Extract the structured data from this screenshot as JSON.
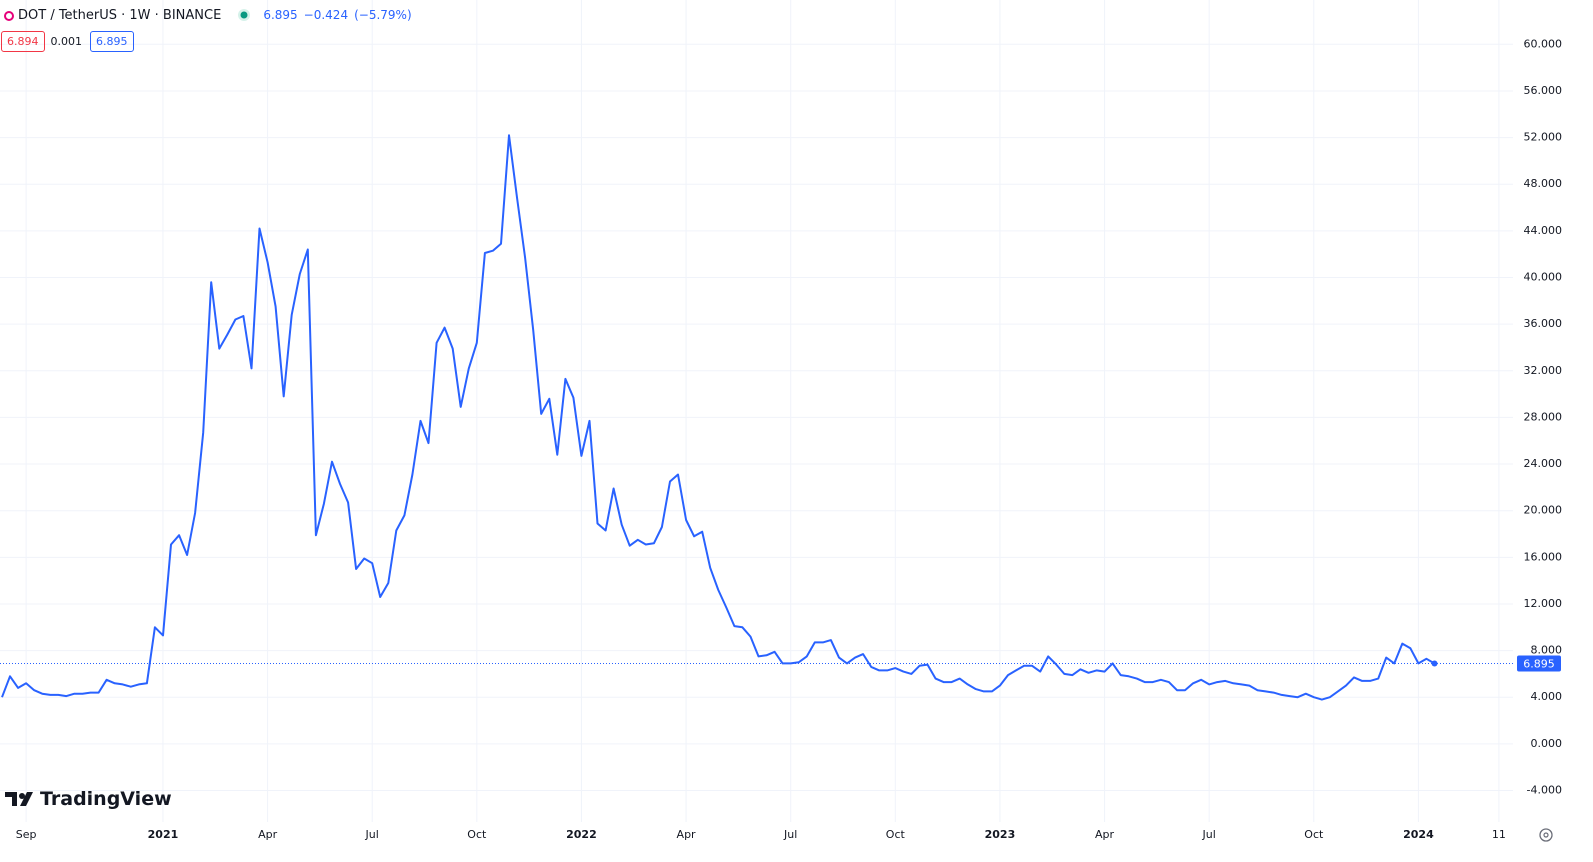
{
  "header": {
    "symbol": "DOT / TetherUS · 1W · BINANCE",
    "last": "6.895",
    "change": "−0.424",
    "change_pct": "(−5.79%)",
    "quote": {
      "bid": "6.894",
      "spread": "0.001",
      "ask": "6.895"
    }
  },
  "branding": "TradingView",
  "chart_data": {
    "type": "line",
    "color": "#2962ff",
    "grid": true,
    "ylim": [
      -6.7,
      63.8
    ],
    "yticks": [
      {
        "value": -4,
        "label": "-4.000"
      },
      {
        "value": 0,
        "label": "0.000"
      },
      {
        "value": 4,
        "label": "4.000"
      },
      {
        "value": 8,
        "label": "8.000"
      },
      {
        "value": 12,
        "label": "12.000"
      },
      {
        "value": 16,
        "label": "16.000"
      },
      {
        "value": 20,
        "label": "20.000"
      },
      {
        "value": 24,
        "label": "24.000"
      },
      {
        "value": 28,
        "label": "28.000"
      },
      {
        "value": 32,
        "label": "32.000"
      },
      {
        "value": 36,
        "label": "36.000"
      },
      {
        "value": 40,
        "label": "40.000"
      },
      {
        "value": 44,
        "label": "44.000"
      },
      {
        "value": 48,
        "label": "48.000"
      },
      {
        "value": 52,
        "label": "52.000"
      },
      {
        "value": 56,
        "label": "56.000"
      },
      {
        "value": 60,
        "label": "60.000"
      }
    ],
    "categories": [
      null,
      null,
      null,
      "Sep",
      null,
      null,
      null,
      null,
      null,
      null,
      null,
      null,
      null,
      null,
      null,
      null,
      null,
      null,
      null,
      null,
      "2021",
      null,
      null,
      null,
      null,
      null,
      null,
      null,
      null,
      null,
      null,
      null,
      null,
      "Apr",
      null,
      null,
      null,
      null,
      null,
      null,
      null,
      null,
      null,
      null,
      null,
      null,
      "Jul",
      null,
      null,
      null,
      null,
      null,
      null,
      null,
      null,
      null,
      null,
      null,
      null,
      "Oct",
      null,
      null,
      null,
      null,
      null,
      null,
      null,
      null,
      null,
      null,
      null,
      null,
      "2022",
      null,
      null,
      null,
      null,
      null,
      null,
      null,
      null,
      null,
      null,
      null,
      null,
      "Apr",
      null,
      null,
      null,
      null,
      null,
      null,
      null,
      null,
      null,
      null,
      null,
      null,
      "Jul",
      null,
      null,
      null,
      null,
      null,
      null,
      null,
      null,
      null,
      null,
      null,
      null,
      "Oct",
      null,
      null,
      null,
      null,
      null,
      null,
      null,
      null,
      null,
      null,
      null,
      null,
      "2023",
      null,
      null,
      null,
      null,
      null,
      null,
      null,
      null,
      null,
      null,
      null,
      null,
      "Apr",
      null,
      null,
      null,
      null,
      null,
      null,
      null,
      null,
      null,
      null,
      null,
      null,
      "Jul",
      null,
      null,
      null,
      null,
      null,
      null,
      null,
      null,
      null,
      null,
      null,
      null,
      "Oct",
      null,
      null,
      null,
      null,
      null,
      null,
      null,
      null,
      null,
      null,
      null,
      null,
      "2024",
      null,
      null,
      null,
      null,
      null,
      null,
      null,
      null,
      null,
      "11",
      null
    ],
    "values": [
      4.0,
      5.8,
      4.8,
      5.2,
      4.6,
      4.3,
      4.2,
      4.2,
      4.1,
      4.3,
      4.3,
      4.4,
      4.4,
      5.5,
      5.2,
      5.1,
      4.9,
      5.1,
      5.2,
      10.0,
      9.3,
      17.1,
      17.9,
      16.2,
      19.8,
      26.7,
      39.6,
      33.9,
      35.1,
      36.4,
      36.7,
      32.2,
      44.2,
      41.3,
      37.5,
      29.8,
      36.8,
      40.3,
      42.4,
      17.9,
      20.6,
      24.2,
      22.3,
      20.7,
      15.0,
      15.9,
      15.5,
      12.6,
      13.8,
      18.3,
      19.6,
      23.1,
      27.7,
      25.8,
      34.4,
      35.7,
      33.9,
      28.9,
      32.2,
      34.4,
      42.1,
      42.3,
      42.9,
      52.2,
      46.8,
      41.7,
      35.5,
      28.3,
      29.6,
      24.8,
      31.3,
      29.7,
      24.7,
      27.7,
      18.9,
      18.3,
      21.9,
      18.8,
      17.0,
      17.5,
      17.1,
      17.2,
      18.6,
      22.5,
      23.1,
      19.2,
      17.8,
      18.2,
      15.1,
      13.2,
      11.7,
      10.1,
      10.0,
      9.2,
      7.5,
      7.6,
      7.9,
      6.9,
      6.9,
      7.0,
      7.5,
      8.7,
      8.7,
      8.9,
      7.4,
      6.9,
      7.4,
      7.7,
      6.6,
      6.3,
      6.3,
      6.5,
      6.2,
      6.0,
      6.7,
      6.8,
      5.6,
      5.3,
      5.3,
      5.6,
      5.1,
      4.7,
      4.5,
      4.5,
      5.0,
      5.9,
      6.3,
      6.7,
      6.7,
      6.2,
      7.5,
      6.8,
      6.0,
      5.9,
      6.4,
      6.1,
      6.3,
      6.2,
      6.9,
      5.9,
      5.8,
      5.6,
      5.3,
      5.3,
      5.5,
      5.3,
      4.6,
      4.6,
      5.2,
      5.5,
      5.1,
      5.3,
      5.4,
      5.2,
      5.1,
      5.0,
      4.6,
      4.5,
      4.4,
      4.2,
      4.1,
      4.0,
      4.3,
      4.0,
      3.8,
      4.0,
      4.5,
      5.0,
      5.7,
      5.4,
      5.4,
      5.6,
      7.4,
      6.9,
      8.6,
      8.2,
      6.9,
      7.3,
      6.895,
      null,
      null,
      null,
      null,
      null,
      null,
      null,
      null,
      null
    ]
  }
}
